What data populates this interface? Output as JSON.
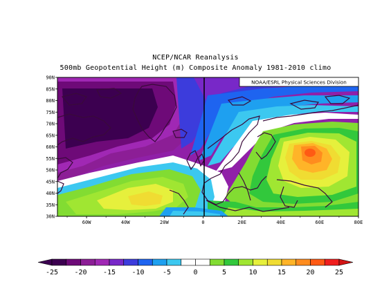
{
  "title_line1": "NCEP/NCAR Reanalysis",
  "title_line2": "500mb Geopotential Height (m) Composite Anomaly 1981-2010 climo",
  "credit": "NOAA/ESRL Physical Sciences Division",
  "chart_data": {
    "type": "heatmap",
    "projection": "cylindrical equidistant",
    "variable": "500mb geopotential height composite anomaly (m)",
    "lon_range": [
      -75,
      80
    ],
    "lat_range": [
      30,
      90
    ],
    "lon_tick_labels": [
      "60W",
      "40W",
      "20W",
      "0",
      "20E",
      "40E",
      "60E",
      "80E"
    ],
    "lat_tick_labels": [
      "30N",
      "35N",
      "40N",
      "45N",
      "50N",
      "55N",
      "60N",
      "65N",
      "70N",
      "75N",
      "80N",
      "85N",
      "90N"
    ],
    "features": [
      {
        "name": "negative anomaly",
        "center_lon": -60,
        "center_lat": 72,
        "min_value": -25
      },
      {
        "name": "positive anomaly",
        "center_lon": -25,
        "center_lat": 40,
        "max_value": 10
      },
      {
        "name": "positive anomaly",
        "center_lon": 55,
        "center_lat": 59,
        "max_value": 20
      }
    ],
    "colorbar": {
      "tick_labels": [
        "-25",
        "-20",
        "-15",
        "-10",
        "-5",
        "0",
        "5",
        "10",
        "15",
        "20",
        "25"
      ],
      "min": -25,
      "max": 25,
      "step": 2.5,
      "colors": [
        "#3c0050",
        "#6e0a78",
        "#8c1e96",
        "#a028b4",
        "#7828c8",
        "#3c3cdc",
        "#1e64f0",
        "#1ea0f0",
        "#3cc8f0",
        "#ffffff",
        "#ffffff",
        "#82dc32",
        "#32c83c",
        "#a0e632",
        "#e6f03c",
        "#f0dc32",
        "#ffb428",
        "#ff8c1e",
        "#ff5a14",
        "#f01e1e"
      ]
    }
  }
}
